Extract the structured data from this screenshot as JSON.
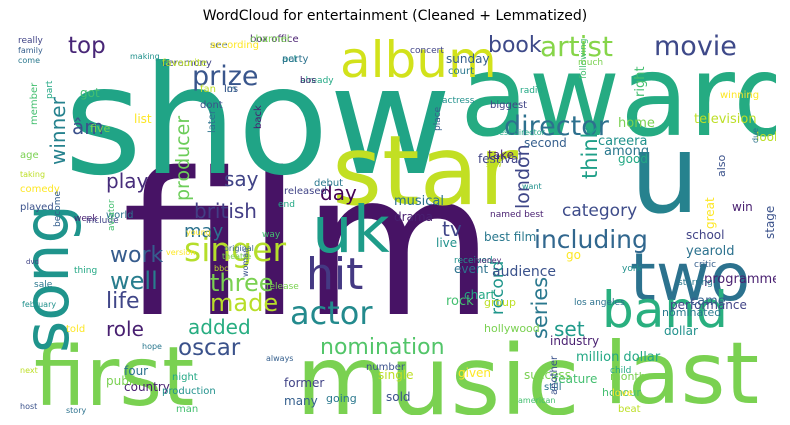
{
  "title": "WordCloud for entertainment (Cleaned + Lemmatized)",
  "chart_data": {
    "type": "wordcloud",
    "title": "WordCloud for entertainment (Cleaned + Lemmatized)",
    "colormap": "viridis",
    "background": "#ffffff",
    "words": [
      {
        "text": "film",
        "weight": 1.0,
        "color": "#471365"
      },
      {
        "text": "show",
        "weight": 0.82,
        "color": "#20a486"
      },
      {
        "text": "award",
        "weight": 0.7,
        "color": "#25ab82"
      },
      {
        "text": "music",
        "weight": 0.66,
        "color": "#7ad151"
      },
      {
        "text": "star",
        "weight": 0.6,
        "color": "#c2df23"
      },
      {
        "text": "first",
        "weight": 0.58,
        "color": "#7ad151"
      },
      {
        "text": "u",
        "weight": 0.6,
        "color": "#26828e"
      },
      {
        "text": "last",
        "weight": 0.52,
        "color": "#7ad151"
      },
      {
        "text": "uk",
        "weight": 0.46,
        "color": "#1e9c89"
      },
      {
        "text": "two",
        "weight": 0.45,
        "color": "#2c728e"
      },
      {
        "text": "song",
        "weight": 0.44,
        "color": "#1f948c"
      },
      {
        "text": "album",
        "weight": 0.4,
        "color": "#d2e21b"
      },
      {
        "text": "band",
        "weight": 0.36,
        "color": "#29af7f"
      },
      {
        "text": "hit",
        "weight": 0.33,
        "color": "#443983"
      },
      {
        "text": "singer",
        "weight": 0.25,
        "color": "#b5de2b"
      },
      {
        "text": "director",
        "weight": 0.22,
        "color": "#2d708e"
      },
      {
        "text": "artist",
        "weight": 0.22,
        "color": "#86d549"
      },
      {
        "text": "actor",
        "weight": 0.22,
        "color": "#238a8d"
      },
      {
        "text": "prize",
        "weight": 0.21,
        "color": "#39568c"
      },
      {
        "text": "movie",
        "weight": 0.21,
        "color": "#3e4989"
      },
      {
        "text": "nomination",
        "weight": 0.19,
        "color": "#52c569"
      },
      {
        "text": "including",
        "weight": 0.18,
        "color": "#31678e"
      },
      {
        "text": "well",
        "weight": 0.17,
        "color": "#287d8e"
      },
      {
        "text": "three",
        "weight": 0.17,
        "color": "#7ad151"
      },
      {
        "text": "made",
        "weight": 0.17,
        "color": "#b8de29"
      },
      {
        "text": "oscar",
        "weight": 0.17,
        "color": "#3b528b"
      },
      {
        "text": "top",
        "weight": 0.16,
        "color": "#482677"
      },
      {
        "text": "book",
        "weight": 0.15,
        "color": "#3e4a89"
      },
      {
        "text": "series",
        "weight": 0.15,
        "color": "#2a788e"
      },
      {
        "text": "work",
        "weight": 0.15,
        "color": "#365c8d"
      },
      {
        "text": "life",
        "weight": 0.15,
        "color": "#404688"
      },
      {
        "text": "play",
        "weight": 0.14,
        "color": "#472d7b"
      },
      {
        "text": "say",
        "weight": 0.14,
        "color": "#414487"
      },
      {
        "text": "british",
        "weight": 0.14,
        "color": "#433e85"
      },
      {
        "text": "producer",
        "weight": 0.14,
        "color": "#6ccd5a"
      },
      {
        "text": "london",
        "weight": 0.14,
        "color": "#3f4788"
      },
      {
        "text": "role",
        "weight": 0.13,
        "color": "#481f70"
      },
      {
        "text": "added",
        "weight": 0.13,
        "color": "#27ad81"
      },
      {
        "text": "day",
        "weight": 0.13,
        "color": "#440154"
      },
      {
        "text": "may",
        "weight": 0.13,
        "color": "#2c728e"
      },
      {
        "text": "set",
        "weight": 0.13,
        "color": "#1f9a8a"
      },
      {
        "text": "record",
        "weight": 0.13,
        "color": "#1f968b"
      },
      {
        "text": "think",
        "weight": 0.13,
        "color": "#1f9f88"
      },
      {
        "text": "tv",
        "weight": 0.13,
        "color": "#404588"
      },
      {
        "text": "category",
        "weight": 0.12,
        "color": "#3e4c8a"
      },
      {
        "text": "winner",
        "weight": 0.12,
        "color": "#26828e"
      },
      {
        "text": "âm",
        "weight": 0.12,
        "color": "#3b518b"
      }
    ]
  },
  "small_words": [
    "box office",
    "ceremony",
    "see",
    "im",
    "act",
    "already",
    "got",
    "five",
    "fan",
    "list",
    "dont",
    "later",
    "back",
    "really",
    "family",
    "come",
    "making",
    "part",
    "member",
    "age",
    "taking",
    "comedy",
    "played",
    "world",
    "week",
    "include",
    "become",
    "sale",
    "february",
    "thing",
    "aviator",
    "theatre",
    "bbc",
    "young",
    "woman",
    "musical",
    "drama",
    "released",
    "original",
    "best film",
    "live",
    "chart",
    "rock",
    "hollywood",
    "group",
    "go",
    "audience",
    "event",
    "take",
    "festival",
    "second",
    "among",
    "careera",
    "good",
    "right",
    "home",
    "television",
    "great",
    "stage",
    "yearold",
    "programme",
    "performance",
    "came",
    "nominated",
    "dollar",
    "million dollar",
    "feature",
    "success",
    "single",
    "given",
    "sold",
    "four",
    "country",
    "former",
    "many",
    "going",
    "production",
    "night",
    "man",
    "public",
    "next",
    "told",
    "number",
    "still",
    "industry",
    "concert",
    "sunday",
    "court",
    "actress",
    "radio",
    "following",
    "much",
    "look",
    "winning",
    "also",
    "due",
    "win",
    "school",
    "critic",
    "starring",
    "york",
    "child",
    "honour",
    "month",
    "beat",
    "love",
    "another",
    "los angeles",
    "named best",
    "biggest",
    "place",
    "debut",
    "received",
    "end",
    "way",
    "release",
    "saw",
    "version",
    "host",
    "story",
    "money",
    "dvd",
    "always",
    "hope",
    "want",
    "best director",
    "american",
    "channel",
    "favourite",
    "according",
    "los",
    "party",
    "bos"
  ]
}
